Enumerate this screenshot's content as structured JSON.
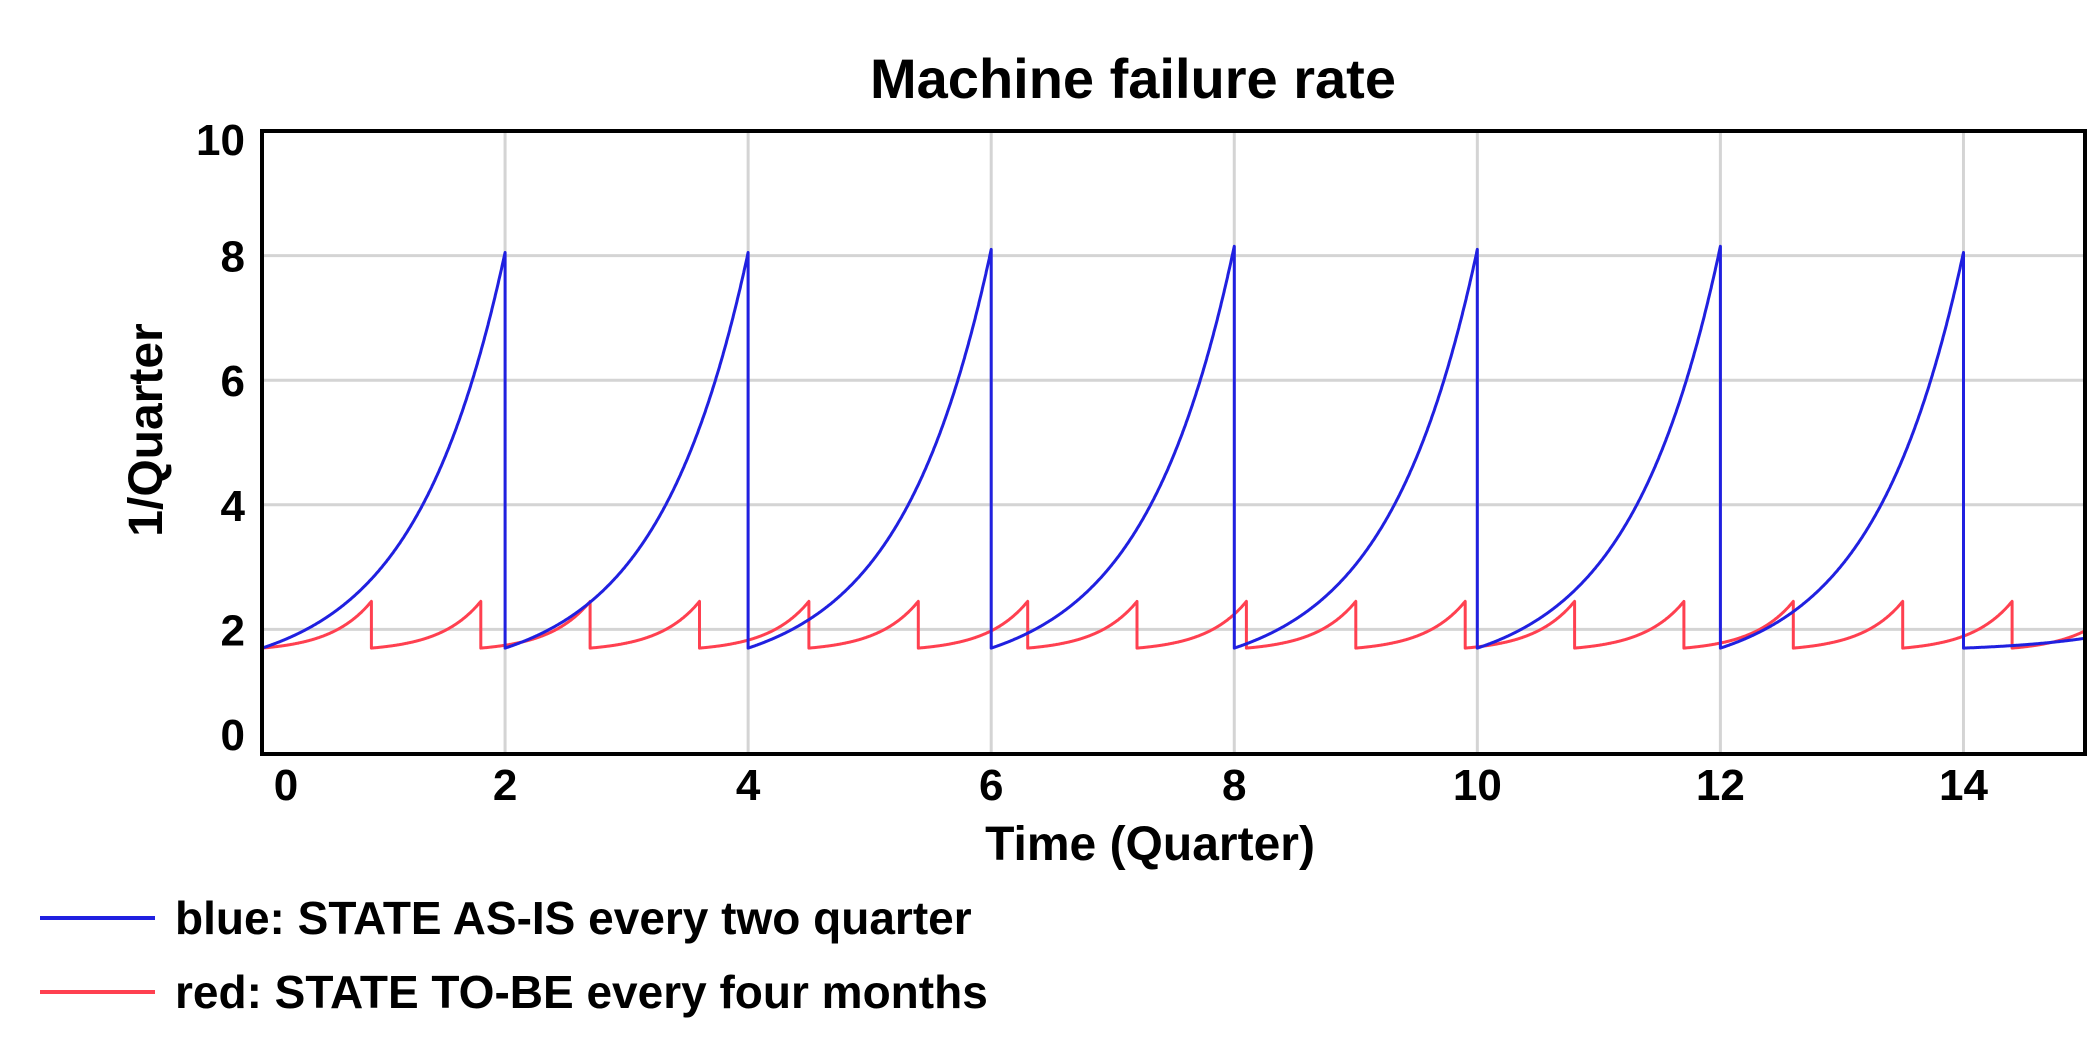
{
  "chart_data": {
    "type": "line",
    "title": "Machine failure rate",
    "xlabel": "Time (Quarter)",
    "ylabel": "1/Quarter",
    "xlim": [
      0,
      15
    ],
    "ylim": [
      0,
      10
    ],
    "x_ticks": [
      0,
      2,
      4,
      6,
      8,
      10,
      12,
      14
    ],
    "y_ticks": [
      0,
      2,
      4,
      6,
      8,
      10
    ],
    "grid": true,
    "legend_position": "bottom-left",
    "series": [
      {
        "name": "blue: STATE AS-IS every two quarter",
        "color": "#2020e0",
        "reset_period": 2,
        "base_value": 1.7,
        "peak_values": [
          8.05,
          8.05,
          8.1,
          8.15,
          8.1,
          8.15,
          8.05
        ],
        "end_value": 2.45
      },
      {
        "name": "red: STATE TO-BE every four months",
        "color": "#ff4050",
        "reset_period": 0.9,
        "base_value": 1.7,
        "peak_value": 2.45
      }
    ]
  }
}
